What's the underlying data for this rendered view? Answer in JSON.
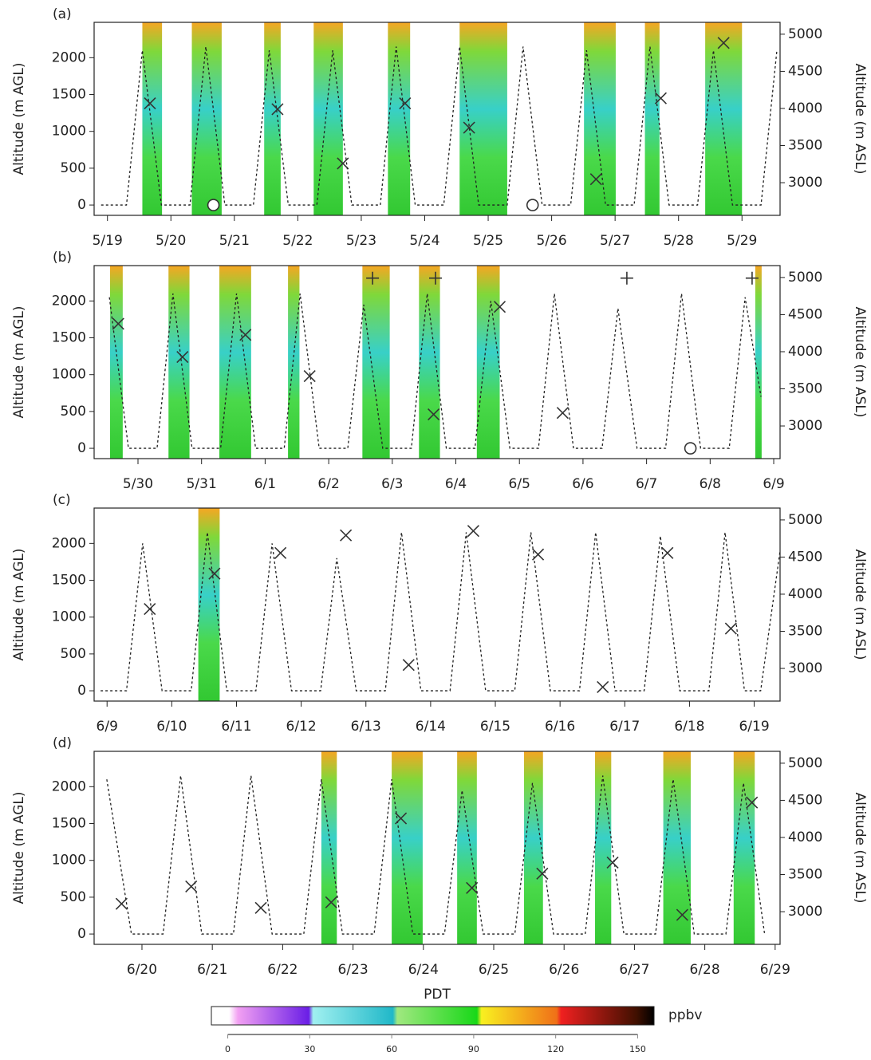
{
  "chart_data": [
    {
      "type": "line",
      "title": "(a)",
      "y_label": "Altitude (m AGL)",
      "y2_label": "Altitude (m ASL)",
      "xlim": [
        -0.21,
        10.6
      ],
      "ylim": [
        -140,
        2480
      ],
      "y2lim": [
        2560,
        5160
      ],
      "xticks": [
        {
          "value": 0,
          "label": "5/19"
        },
        {
          "value": 1,
          "label": "5/20"
        },
        {
          "value": 2,
          "label": "5/21"
        },
        {
          "value": 3,
          "label": "5/22"
        },
        {
          "value": 4,
          "label": "5/23"
        },
        {
          "value": 5,
          "label": "5/24"
        },
        {
          "value": 6,
          "label": "5/25"
        },
        {
          "value": 7,
          "label": "5/26"
        },
        {
          "value": 8,
          "label": "5/27"
        },
        {
          "value": 9,
          "label": "5/28"
        },
        {
          "value": 10,
          "label": "5/29"
        }
      ],
      "yticks": [
        0,
        500,
        1000,
        1500,
        2000
      ],
      "y2ticks": [
        3000,
        3500,
        4000,
        4500,
        5000
      ],
      "lidar_periods": [
        [
          0.55,
          0.86
        ],
        [
          1.33,
          1.8
        ],
        [
          2.47,
          2.73
        ],
        [
          3.25,
          3.71
        ],
        [
          4.42,
          4.77
        ],
        [
          5.55,
          6.3
        ],
        [
          7.51,
          8.01
        ],
        [
          8.47,
          8.7
        ],
        [
          9.42,
          10.0
        ]
      ],
      "series": [
        {
          "marker": "dotted-line",
          "color": "#222",
          "x": [
            -0.1,
            0.3,
            0.55,
            0.85,
            1.3,
            1.55,
            1.85,
            2.3,
            2.55,
            2.85,
            3.3,
            3.55,
            3.85,
            4.3,
            4.55,
            4.85,
            5.3,
            5.55,
            5.85,
            6.3,
            6.55,
            6.85,
            7.3,
            7.55,
            7.85,
            8.3,
            8.55,
            8.85,
            9.3,
            9.55,
            9.85,
            10.3,
            10.55
          ],
          "values": [
            0,
            0,
            2100,
            0,
            0,
            2150,
            0,
            0,
            2100,
            0,
            0,
            2100,
            0,
            0,
            2150,
            0,
            0,
            2150,
            0,
            0,
            2150,
            0,
            0,
            2100,
            0,
            0,
            2150,
            0,
            0,
            2100,
            0,
            0,
            2100
          ]
        },
        {
          "marker": "x",
          "color": "#333",
          "x": [
            0.67,
            2.68,
            3.71,
            4.69,
            5.7,
            7.7,
            8.72,
            9.71
          ],
          "values": [
            1380,
            1300,
            565,
            1380,
            1050,
            350,
            1450,
            2200
          ]
        },
        {
          "marker": "circle",
          "color": "#333",
          "x": [
            1.67,
            6.7
          ],
          "values": [
            0,
            0
          ]
        }
      ]
    },
    {
      "type": "line",
      "title": "(b)",
      "y_label": "Altitude (m AGL)",
      "y2_label": "Altitude (m ASL)",
      "xlim": [
        -0.69,
        10.1
      ],
      "ylim": [
        -140,
        2480
      ],
      "y2lim": [
        2560,
        5160
      ],
      "xticks": [
        {
          "value": 0,
          "label": "5/30"
        },
        {
          "value": 1,
          "label": "5/31"
        },
        {
          "value": 2,
          "label": "6/1"
        },
        {
          "value": 3,
          "label": "6/2"
        },
        {
          "value": 4,
          "label": "6/3"
        },
        {
          "value": 5,
          "label": "6/4"
        },
        {
          "value": 6,
          "label": "6/5"
        },
        {
          "value": 7,
          "label": "6/6"
        },
        {
          "value": 8,
          "label": "6/7"
        },
        {
          "value": 9,
          "label": "6/8"
        },
        {
          "value": 10,
          "label": "6/9"
        }
      ],
      "yticks": [
        0,
        500,
        1000,
        1500,
        2000
      ],
      "y2ticks": [
        3000,
        3500,
        4000,
        4500,
        5000
      ],
      "lidar_periods": [
        [
          -0.44,
          -0.24
        ],
        [
          0.48,
          0.81
        ],
        [
          1.28,
          1.78
        ],
        [
          2.36,
          2.54
        ],
        [
          3.53,
          3.96
        ],
        [
          4.42,
          4.75
        ],
        [
          5.33,
          5.69
        ],
        [
          9.71,
          9.81
        ]
      ],
      "series": [
        {
          "marker": "dotted-line",
          "color": "#222",
          "x": [
            -0.45,
            -0.15,
            0.3,
            0.55,
            0.85,
            1.3,
            1.55,
            1.85,
            2.3,
            2.55,
            2.85,
            3.3,
            3.55,
            3.85,
            4.3,
            4.55,
            4.85,
            5.3,
            5.55,
            5.85,
            6.3,
            6.55,
            6.85,
            7.3,
            7.55,
            7.85,
            8.3,
            8.55,
            8.85,
            9.3,
            9.55,
            9.8
          ],
          "values": [
            2050,
            0,
            0,
            2100,
            0,
            0,
            2100,
            0,
            0,
            2100,
            0,
            0,
            1950,
            0,
            0,
            2100,
            0,
            0,
            2000,
            0,
            0,
            2100,
            0,
            0,
            1900,
            0,
            0,
            2100,
            0,
            0,
            2050,
            700
          ]
        },
        {
          "marker": "x",
          "color": "#333",
          "x": [
            -0.31,
            0.7,
            1.69,
            2.7,
            4.65,
            5.69,
            6.68
          ],
          "values": [
            1690,
            1240,
            1540,
            980,
            460,
            1920,
            480
          ]
        },
        {
          "marker": "plus",
          "color": "#333",
          "x": [
            3.69,
            4.68,
            7.69,
            9.66
          ],
          "values": [
            2310,
            2310,
            2310,
            2310
          ]
        },
        {
          "marker": "circle",
          "color": "#333",
          "x": [
            8.69
          ],
          "values": [
            0
          ]
        }
      ]
    },
    {
      "type": "line",
      "title": "(c)",
      "y_label": "Altitude (m AGL)",
      "y2_label": "Altitude (m ASL)",
      "xlim": [
        -0.2,
        10.4
      ],
      "ylim": [
        -140,
        2480
      ],
      "y2lim": [
        2560,
        5160
      ],
      "xticks": [
        {
          "value": 0,
          "label": "6/9"
        },
        {
          "value": 1,
          "label": "6/10"
        },
        {
          "value": 2,
          "label": "6/11"
        },
        {
          "value": 3,
          "label": "6/12"
        },
        {
          "value": 4,
          "label": "6/13"
        },
        {
          "value": 5,
          "label": "6/14"
        },
        {
          "value": 6,
          "label": "6/15"
        },
        {
          "value": 7,
          "label": "6/16"
        },
        {
          "value": 8,
          "label": "6/17"
        },
        {
          "value": 9,
          "label": "6/18"
        },
        {
          "value": 10,
          "label": "6/19"
        }
      ],
      "yticks": [
        0,
        500,
        1000,
        1500,
        2000
      ],
      "y2ticks": [
        3000,
        3500,
        4000,
        4500,
        5000
      ],
      "lidar_periods": [
        [
          1.41,
          1.74
        ]
      ],
      "series": [
        {
          "marker": "dotted-line",
          "color": "#222",
          "x": [
            -0.1,
            0.3,
            0.55,
            0.85,
            1.3,
            1.55,
            1.85,
            2.3,
            2.55,
            2.85,
            3.3,
            3.55,
            3.85,
            4.3,
            4.55,
            4.85,
            5.3,
            5.55,
            5.85,
            6.3,
            6.55,
            6.85,
            7.3,
            7.55,
            7.85,
            8.3,
            8.55,
            8.85,
            9.3,
            9.55,
            9.85,
            10.1,
            10.4
          ],
          "values": [
            0,
            0,
            2000,
            0,
            0,
            2150,
            0,
            0,
            2000,
            0,
            0,
            1800,
            0,
            0,
            2150,
            0,
            0,
            2150,
            0,
            0,
            2150,
            0,
            0,
            2150,
            0,
            0,
            2100,
            0,
            0,
            2150,
            0,
            0,
            1900
          ]
        },
        {
          "marker": "x",
          "color": "#333",
          "x": [
            0.66,
            1.66,
            2.68,
            3.69,
            4.66,
            5.66,
            6.66,
            7.66,
            8.66,
            9.64
          ],
          "values": [
            1110,
            1590,
            1870,
            2110,
            350,
            2170,
            1850,
            50,
            1870,
            845
          ]
        }
      ]
    },
    {
      "type": "line",
      "title": "(d)",
      "y_label": "Altitude (m AGL)",
      "y2_label": "Altitude (m ASL)",
      "xlim": [
        -0.68,
        9.07
      ],
      "ylim": [
        -140,
        2480
      ],
      "y2lim": [
        2560,
        5160
      ],
      "xticks": [
        {
          "value": 0,
          "label": "6/20"
        },
        {
          "value": 1,
          "label": "6/21"
        },
        {
          "value": 2,
          "label": "6/22"
        },
        {
          "value": 3,
          "label": "6/23"
        },
        {
          "value": 4,
          "label": "6/24"
        },
        {
          "value": 5,
          "label": "6/25"
        },
        {
          "value": 6,
          "label": "6/26"
        },
        {
          "value": 7,
          "label": "6/27"
        },
        {
          "value": 8,
          "label": "6/28"
        },
        {
          "value": 9,
          "label": "6/29"
        }
      ],
      "yticks": [
        0,
        500,
        1000,
        1500,
        2000
      ],
      "y2ticks": [
        3000,
        3500,
        4000,
        4500,
        5000
      ],
      "lidar_periods": [
        [
          2.55,
          2.77
        ],
        [
          3.55,
          3.99
        ],
        [
          4.48,
          4.76
        ],
        [
          5.43,
          5.7
        ],
        [
          6.44,
          6.67
        ],
        [
          7.41,
          7.8
        ],
        [
          8.41,
          8.71
        ]
      ],
      "series": [
        {
          "marker": "dotted-line",
          "color": "#222",
          "x": [
            -0.5,
            -0.15,
            0.3,
            0.55,
            0.85,
            1.3,
            1.55,
            1.85,
            2.3,
            2.55,
            2.85,
            3.3,
            3.55,
            3.85,
            4.3,
            4.55,
            4.85,
            5.3,
            5.55,
            5.85,
            6.3,
            6.55,
            6.85,
            7.3,
            7.55,
            7.85,
            8.3,
            8.55,
            8.85
          ],
          "values": [
            2100,
            0,
            0,
            2150,
            0,
            0,
            2150,
            0,
            0,
            2100,
            0,
            0,
            2100,
            0,
            0,
            1950,
            0,
            0,
            2050,
            0,
            0,
            2150,
            0,
            0,
            2100,
            0,
            0,
            2050,
            0
          ]
        },
        {
          "marker": "x",
          "color": "#333",
          "x": [
            -0.29,
            0.7,
            1.69,
            2.69,
            3.68,
            4.69,
            5.69,
            6.69,
            7.68,
            8.67
          ],
          "values": [
            410,
            645,
            355,
            430,
            1570,
            625,
            820,
            970,
            260,
            1785
          ]
        }
      ]
    }
  ],
  "x_label": "PDT",
  "colorbar": {
    "label": "ppbv",
    "lim": [
      -6,
      156
    ],
    "ticks": [
      0,
      30,
      60,
      90,
      120,
      150
    ]
  }
}
